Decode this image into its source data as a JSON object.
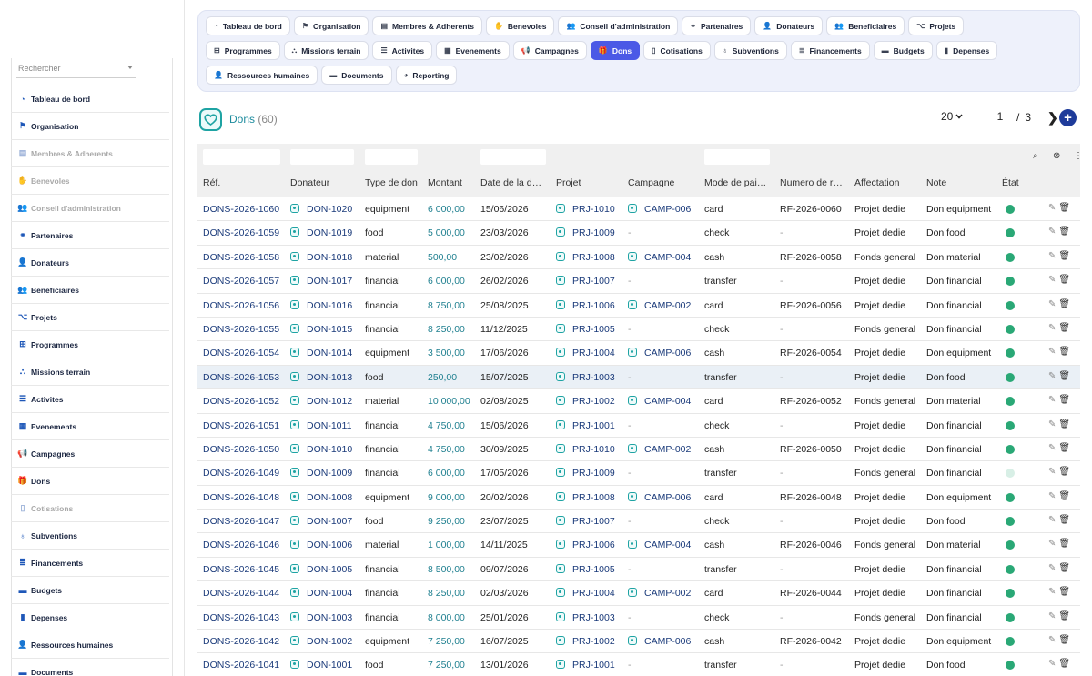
{
  "sidebar": {
    "search_placeholder": "Rechercher",
    "items": [
      {
        "label": "Tableau de bord",
        "icon": "gauge-icon",
        "glyph": "◔",
        "dim": false
      },
      {
        "label": "Organisation",
        "icon": "flag-icon",
        "glyph": "⚑",
        "dim": false
      },
      {
        "label": "Membres & Adherents",
        "icon": "id-card-icon",
        "glyph": "▤",
        "dim": true
      },
      {
        "label": "Benevoles",
        "icon": "handshake-icon",
        "glyph": "✋",
        "dim": true
      },
      {
        "label": "Conseil d'administration",
        "icon": "users-icon",
        "glyph": "👥",
        "dim": true
      },
      {
        "label": "Partenaires",
        "icon": "handshake-icon",
        "glyph": "⚭",
        "dim": false
      },
      {
        "label": "Donateurs",
        "icon": "user-tie-icon",
        "glyph": "👤",
        "dim": false
      },
      {
        "label": "Beneficiaires",
        "icon": "users-icon",
        "glyph": "👥",
        "dim": false
      },
      {
        "label": "Projets",
        "icon": "diagram-icon",
        "glyph": "⌥",
        "dim": false
      },
      {
        "label": "Programmes",
        "icon": "sitemap-icon",
        "glyph": "⊞",
        "dim": false
      },
      {
        "label": "Missions terrain",
        "icon": "people-group-icon",
        "glyph": "⛬",
        "dim": false
      },
      {
        "label": "Activites",
        "icon": "list-icon",
        "glyph": "☰",
        "dim": false
      },
      {
        "label": "Evenements",
        "icon": "calendar-icon",
        "glyph": "▦",
        "dim": false
      },
      {
        "label": "Campagnes",
        "icon": "bullhorn-icon",
        "glyph": "📢",
        "dim": false
      },
      {
        "label": "Dons",
        "icon": "gift-icon",
        "glyph": "🎁",
        "dim": false
      },
      {
        "label": "Cotisations",
        "icon": "receipt-icon",
        "glyph": "▯",
        "dim": true
      },
      {
        "label": "Subventions",
        "icon": "award-icon",
        "glyph": "♁",
        "dim": false
      },
      {
        "label": "Financements",
        "icon": "money-icon",
        "glyph": "≣",
        "dim": false
      },
      {
        "label": "Budgets",
        "icon": "wallet-icon",
        "glyph": "▬",
        "dim": false
      },
      {
        "label": "Depenses",
        "icon": "file-invoice-icon",
        "glyph": "▮",
        "dim": false
      },
      {
        "label": "Ressources humaines",
        "icon": "user-icon",
        "glyph": "👤",
        "dim": false
      },
      {
        "label": "Documents",
        "icon": "folder-icon",
        "glyph": "▬",
        "dim": false
      }
    ]
  },
  "tabs": {
    "row1": [
      {
        "label": "Tableau de bord",
        "icon": "gauge-icon",
        "glyph": "◔"
      },
      {
        "label": "Organisation",
        "icon": "flag-icon",
        "glyph": "⚑"
      },
      {
        "label": "Membres & Adherents",
        "icon": "id-card-icon",
        "glyph": "▤"
      },
      {
        "label": "Benevoles",
        "icon": "handshake-icon",
        "glyph": "✋"
      },
      {
        "label": "Conseil d'administration",
        "icon": "users-icon",
        "glyph": "👥"
      },
      {
        "label": "Partenaires",
        "icon": "handshake-icon",
        "glyph": "⚭"
      },
      {
        "label": "Donateurs",
        "icon": "user-tie-icon",
        "glyph": "👤"
      },
      {
        "label": "Beneficiaires",
        "icon": "users-icon",
        "glyph": "👥"
      },
      {
        "label": "Projets",
        "icon": "diagram-icon",
        "glyph": "⌥"
      }
    ],
    "row2": [
      {
        "label": "Programmes",
        "icon": "sitemap-icon",
        "glyph": "⊞"
      },
      {
        "label": "Missions terrain",
        "icon": "people-group-icon",
        "glyph": "⛬"
      },
      {
        "label": "Activites",
        "icon": "list-icon",
        "glyph": "☰"
      },
      {
        "label": "Evenements",
        "icon": "calendar-icon",
        "glyph": "▦"
      },
      {
        "label": "Campagnes",
        "icon": "bullhorn-icon",
        "glyph": "📢"
      },
      {
        "label": "Dons",
        "icon": "gift-icon",
        "glyph": "🎁",
        "active": true
      },
      {
        "label": "Cotisations",
        "icon": "receipt-icon",
        "glyph": "▯"
      },
      {
        "label": "Subventions",
        "icon": "award-icon",
        "glyph": "♁"
      },
      {
        "label": "Financements",
        "icon": "money-icon",
        "glyph": "≣"
      },
      {
        "label": "Budgets",
        "icon": "wallet-icon",
        "glyph": "▬"
      },
      {
        "label": "Depenses",
        "icon": "file-invoice-icon",
        "glyph": "▮"
      }
    ],
    "row3": [
      {
        "label": "Ressources humaines",
        "icon": "user-icon",
        "glyph": "👤"
      },
      {
        "label": "Documents",
        "icon": "folder-icon",
        "glyph": "▬"
      },
      {
        "label": "Reporting",
        "icon": "chart-pie-icon",
        "glyph": "◕"
      }
    ]
  },
  "header": {
    "title": "Dons",
    "count": "(60)"
  },
  "pager": {
    "page_size": "20",
    "page": "1",
    "sep": "/",
    "total": "3",
    "next": "❯",
    "add": "+"
  },
  "columns": [
    "Réf.",
    "Donateur",
    "Type de don",
    "Montant",
    "Date de la d…",
    "Projet",
    "Campagne",
    "Mode de pai…",
    "Numero de r…",
    "Affectation",
    "Note",
    "État"
  ],
  "rows": [
    {
      "ref": "DONS-2026-1060",
      "donateur": "DON-1020",
      "type": "equipment",
      "montant": "6 000,00",
      "date": "15/06/2026",
      "projet": "PRJ-1010",
      "campagne": "CAMP-006",
      "mode": "card",
      "numero": "RF-2026-0060",
      "affectation": "Projet dedie",
      "note": "Don equipment",
      "etat": "active"
    },
    {
      "ref": "DONS-2026-1059",
      "donateur": "DON-1019",
      "type": "food",
      "montant": "5 000,00",
      "date": "23/03/2026",
      "projet": "PRJ-1009",
      "campagne": "-",
      "mode": "check",
      "numero": "-",
      "affectation": "Projet dedie",
      "note": "Don food",
      "etat": "active"
    },
    {
      "ref": "DONS-2026-1058",
      "donateur": "DON-1018",
      "type": "material",
      "montant": "500,00",
      "date": "23/02/2026",
      "projet": "PRJ-1008",
      "campagne": "CAMP-004",
      "mode": "cash",
      "numero": "RF-2026-0058",
      "affectation": "Fonds general",
      "note": "Don material",
      "etat": "active"
    },
    {
      "ref": "DONS-2026-1057",
      "donateur": "DON-1017",
      "type": "financial",
      "montant": "6 000,00",
      "date": "26/02/2026",
      "projet": "PRJ-1007",
      "campagne": "-",
      "mode": "transfer",
      "numero": "-",
      "affectation": "Projet dedie",
      "note": "Don financial",
      "etat": "active"
    },
    {
      "ref": "DONS-2026-1056",
      "donateur": "DON-1016",
      "type": "financial",
      "montant": "8 750,00",
      "date": "25/08/2025",
      "projet": "PRJ-1006",
      "campagne": "CAMP-002",
      "mode": "card",
      "numero": "RF-2026-0056",
      "affectation": "Projet dedie",
      "note": "Don financial",
      "etat": "active"
    },
    {
      "ref": "DONS-2026-1055",
      "donateur": "DON-1015",
      "type": "financial",
      "montant": "8 250,00",
      "date": "11/12/2025",
      "projet": "PRJ-1005",
      "campagne": "-",
      "mode": "check",
      "numero": "-",
      "affectation": "Fonds general",
      "note": "Don financial",
      "etat": "active"
    },
    {
      "ref": "DONS-2026-1054",
      "donateur": "DON-1014",
      "type": "equipment",
      "montant": "3 500,00",
      "date": "17/06/2026",
      "projet": "PRJ-1004",
      "campagne": "CAMP-006",
      "mode": "cash",
      "numero": "RF-2026-0054",
      "affectation": "Projet dedie",
      "note": "Don equipment",
      "etat": "active"
    },
    {
      "ref": "DONS-2026-1053",
      "donateur": "DON-1013",
      "type": "food",
      "montant": "250,00",
      "date": "15/07/2025",
      "projet": "PRJ-1003",
      "campagne": "-",
      "mode": "transfer",
      "numero": "-",
      "affectation": "Projet dedie",
      "note": "Don food",
      "etat": "active",
      "hl": true
    },
    {
      "ref": "DONS-2026-1052",
      "donateur": "DON-1012",
      "type": "material",
      "montant": "10 000,00",
      "date": "02/08/2025",
      "projet": "PRJ-1002",
      "campagne": "CAMP-004",
      "mode": "card",
      "numero": "RF-2026-0052",
      "affectation": "Fonds general",
      "note": "Don material",
      "etat": "active"
    },
    {
      "ref": "DONS-2026-1051",
      "donateur": "DON-1011",
      "type": "financial",
      "montant": "4 750,00",
      "date": "15/06/2026",
      "projet": "PRJ-1001",
      "campagne": "-",
      "mode": "check",
      "numero": "-",
      "affectation": "Projet dedie",
      "note": "Don financial",
      "etat": "active"
    },
    {
      "ref": "DONS-2026-1050",
      "donateur": "DON-1010",
      "type": "financial",
      "montant": "4 750,00",
      "date": "30/09/2025",
      "projet": "PRJ-1010",
      "campagne": "CAMP-002",
      "mode": "cash",
      "numero": "RF-2026-0050",
      "affectation": "Projet dedie",
      "note": "Don financial",
      "etat": "active"
    },
    {
      "ref": "DONS-2026-1049",
      "donateur": "DON-1009",
      "type": "financial",
      "montant": "6 000,00",
      "date": "17/05/2026",
      "projet": "PRJ-1009",
      "campagne": "-",
      "mode": "transfer",
      "numero": "-",
      "affectation": "Fonds general",
      "note": "Don financial",
      "etat": "inactive"
    },
    {
      "ref": "DONS-2026-1048",
      "donateur": "DON-1008",
      "type": "equipment",
      "montant": "9 000,00",
      "date": "20/02/2026",
      "projet": "PRJ-1008",
      "campagne": "CAMP-006",
      "mode": "card",
      "numero": "RF-2026-0048",
      "affectation": "Projet dedie",
      "note": "Don equipment",
      "etat": "active"
    },
    {
      "ref": "DONS-2026-1047",
      "donateur": "DON-1007",
      "type": "food",
      "montant": "9 250,00",
      "date": "23/07/2025",
      "projet": "PRJ-1007",
      "campagne": "-",
      "mode": "check",
      "numero": "-",
      "affectation": "Projet dedie",
      "note": "Don food",
      "etat": "active"
    },
    {
      "ref": "DONS-2026-1046",
      "donateur": "DON-1006",
      "type": "material",
      "montant": "1 000,00",
      "date": "14/11/2025",
      "projet": "PRJ-1006",
      "campagne": "CAMP-004",
      "mode": "cash",
      "numero": "RF-2026-0046",
      "affectation": "Fonds general",
      "note": "Don material",
      "etat": "active"
    },
    {
      "ref": "DONS-2026-1045",
      "donateur": "DON-1005",
      "type": "financial",
      "montant": "8 500,00",
      "date": "09/07/2026",
      "projet": "PRJ-1005",
      "campagne": "-",
      "mode": "transfer",
      "numero": "-",
      "affectation": "Projet dedie",
      "note": "Don financial",
      "etat": "active"
    },
    {
      "ref": "DONS-2026-1044",
      "donateur": "DON-1004",
      "type": "financial",
      "montant": "8 250,00",
      "date": "02/03/2026",
      "projet": "PRJ-1004",
      "campagne": "CAMP-002",
      "mode": "card",
      "numero": "RF-2026-0044",
      "affectation": "Projet dedie",
      "note": "Don financial",
      "etat": "active"
    },
    {
      "ref": "DONS-2026-1043",
      "donateur": "DON-1003",
      "type": "financial",
      "montant": "8 000,00",
      "date": "25/01/2026",
      "projet": "PRJ-1003",
      "campagne": "-",
      "mode": "check",
      "numero": "-",
      "affectation": "Fonds general",
      "note": "Don financial",
      "etat": "active"
    },
    {
      "ref": "DONS-2026-1042",
      "donateur": "DON-1002",
      "type": "equipment",
      "montant": "7 250,00",
      "date": "16/07/2025",
      "projet": "PRJ-1002",
      "campagne": "CAMP-006",
      "mode": "cash",
      "numero": "RF-2026-0042",
      "affectation": "Projet dedie",
      "note": "Don equipment",
      "etat": "active"
    },
    {
      "ref": "DONS-2026-1041",
      "donateur": "DON-1001",
      "type": "food",
      "montant": "7 250,00",
      "date": "13/01/2026",
      "projet": "PRJ-1001",
      "campagne": "-",
      "mode": "transfer",
      "numero": "-",
      "affectation": "Projet dedie",
      "note": "Don food",
      "etat": "active"
    }
  ],
  "actions": {
    "edit_icon": "pencil-icon",
    "delete_icon": "trash-icon",
    "edit": "✎",
    "delete": "🗑"
  },
  "tools": {
    "search": "⌕",
    "clear": "⊗",
    "columns": "⋮"
  },
  "colors": {
    "accent": "#4b59e6",
    "link": "#1a3a7a",
    "amount": "#1e7f8f",
    "status_active": "#2aa876"
  }
}
